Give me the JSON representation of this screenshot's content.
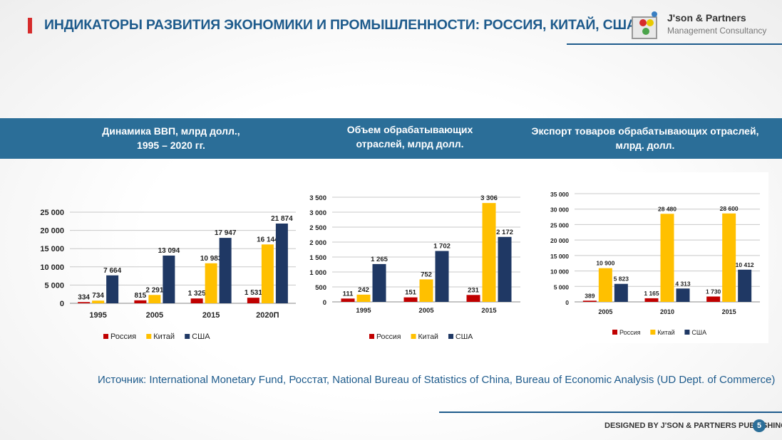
{
  "page": {
    "title": "ИНДИКАТОРЫ РАЗВИТИЯ ЭКОНОМИКИ И ПРОМЫШЛЕННОСТИ: РОССИЯ, КИТАЙ, США",
    "logo_name": "J'son & Partners",
    "logo_sub": "Management Consultancy",
    "source": "Источник:  International Monetary Fund, Росстат, National Bureau of Statistics of China, Bureau of Economic Analysis (UD Dept. of Commerce)",
    "footer": "DESIGNED BY J'SON & PARTNERS PUBLISHING",
    "page_number": "5"
  },
  "band": {
    "title1": "Динамика ВВП, млрд долл., 1995 – 2020 гг.",
    "title1_line1": "Динамика ВВП, млрд долл.,",
    "title1_line2": "1995 – 2020 гг.",
    "title2_line1": "Объем обрабатывающих",
    "title2_line2": "отраслей, млрд долл.",
    "title3_line1": "Экспорт товаров обрабатывающих отраслей,",
    "title3_line2": "млрд. долл."
  },
  "colors": {
    "russia": "#c00000",
    "china": "#ffc000",
    "usa": "#1f3864",
    "accent": "#2b6e98"
  },
  "chart_data": [
    {
      "type": "bar",
      "title": "Динамика ВВП, млрд долл., 1995 – 2020 гг.",
      "categories": [
        "1995",
        "2005",
        "2015",
        "2020П"
      ],
      "series": [
        {
          "name": "Россия",
          "values": [
            334,
            815,
            1325,
            1531
          ],
          "labels": [
            "334",
            "815",
            "1 325",
            "1 531"
          ]
        },
        {
          "name": "Китай",
          "values": [
            734,
            2291,
            10983,
            16144
          ],
          "labels": [
            "734",
            "2 291",
            "10 983",
            "16 144"
          ]
        },
        {
          "name": "США",
          "values": [
            7664,
            13094,
            17947,
            21874
          ],
          "labels": [
            "7 664",
            "13 094",
            "17 947",
            "21 874"
          ]
        }
      ],
      "yticks": [
        "0",
        "5 000",
        "10 000",
        "15 000",
        "20 000",
        "25 000"
      ],
      "ylim": [
        0,
        25000
      ],
      "legend": "bottom"
    },
    {
      "type": "bar",
      "title": "Объем обрабатывающих отраслей, млрд долл.",
      "categories": [
        "1995",
        "2005",
        "2015"
      ],
      "series": [
        {
          "name": "Россия",
          "values": [
            111,
            151,
            231
          ],
          "labels": [
            "111",
            "151",
            "231"
          ]
        },
        {
          "name": "Китай",
          "values": [
            242,
            752,
            3306
          ],
          "labels": [
            "242",
            "752",
            "3 306"
          ]
        },
        {
          "name": "США",
          "values": [
            1265,
            1702,
            2172
          ],
          "labels": [
            "1 265",
            "1 702",
            "2 172"
          ]
        }
      ],
      "yticks": [
        "0",
        "500",
        "1 000",
        "1 500",
        "2 000",
        "2 500",
        "3 000",
        "3 500"
      ],
      "ylim": [
        0,
        3500
      ],
      "legend": "bottom"
    },
    {
      "type": "bar",
      "title": "Экспорт товаров обрабатывающих отраслей, млрд. долл.",
      "categories": [
        "2005",
        "2010",
        "2015"
      ],
      "series": [
        {
          "name": "Россия",
          "values": [
            389,
            1165,
            1730
          ],
          "labels": [
            "389",
            "1 165",
            "1 730"
          ]
        },
        {
          "name": "Китай",
          "values": [
            10900,
            28480,
            28600
          ],
          "labels": [
            "10 900",
            "28 480",
            "28 600"
          ]
        },
        {
          "name": "США",
          "values": [
            5823,
            4313,
            10412
          ],
          "labels": [
            "5 823",
            "4 313",
            "10 412"
          ]
        }
      ],
      "yticks": [
        "0",
        "5 000",
        "10 000",
        "15 000",
        "20 000",
        "25 000",
        "30 000",
        "35 000"
      ],
      "ylim": [
        0,
        35000
      ],
      "legend": "bottom"
    }
  ]
}
